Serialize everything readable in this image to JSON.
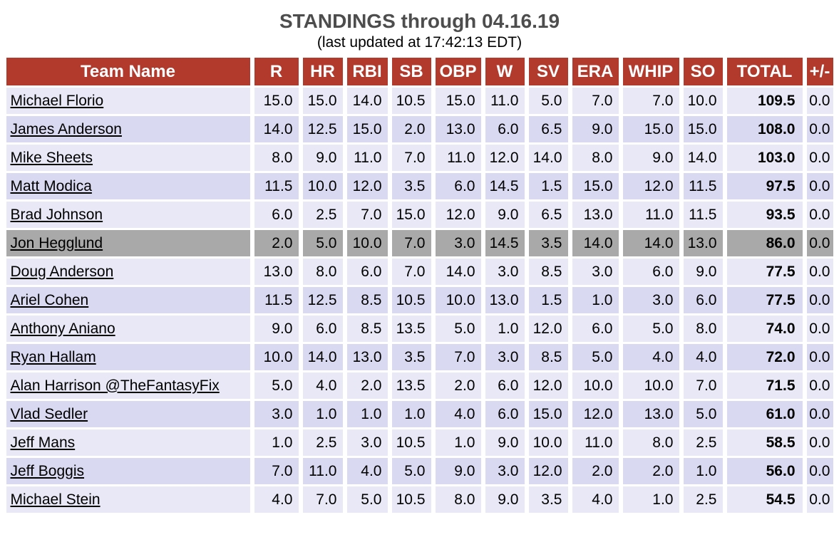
{
  "page": {
    "title": "STANDINGS through 04.16.19",
    "subtitle": "(last updated at 17:42:13 EDT)"
  },
  "colors": {
    "header_bg": "#b13a2d",
    "header_text": "#ffffff",
    "row_light_bg": "#e8e8f7",
    "row_dark_bg": "#d9d9f2",
    "highlight_row_bg": "#a9a9a9",
    "title_color": "#4d4d4d",
    "team_link_color": "#000000"
  },
  "table": {
    "columns": [
      "Team Name",
      "R",
      "HR",
      "RBI",
      "SB",
      "OBP",
      "W",
      "SV",
      "ERA",
      "WHIP",
      "SO",
      "TOTAL",
      "+/-"
    ],
    "rows": [
      {
        "team": "Michael Florio",
        "stats": [
          "15.0",
          "15.0",
          "14.0",
          "10.5",
          "15.0",
          "11.0",
          "5.0",
          "7.0",
          "7.0",
          "10.0"
        ],
        "total": "109.5",
        "plus_minus": "0.0",
        "highlighted": false
      },
      {
        "team": "James Anderson",
        "stats": [
          "14.0",
          "12.5",
          "15.0",
          "2.0",
          "13.0",
          "6.0",
          "6.5",
          "9.0",
          "15.0",
          "15.0"
        ],
        "total": "108.0",
        "plus_minus": "0.0",
        "highlighted": false
      },
      {
        "team": "Mike Sheets",
        "stats": [
          "8.0",
          "9.0",
          "11.0",
          "7.0",
          "11.0",
          "12.0",
          "14.0",
          "8.0",
          "9.0",
          "14.0"
        ],
        "total": "103.0",
        "plus_minus": "0.0",
        "highlighted": false
      },
      {
        "team": "Matt Modica",
        "stats": [
          "11.5",
          "10.0",
          "12.0",
          "3.5",
          "6.0",
          "14.5",
          "1.5",
          "15.0",
          "12.0",
          "11.5"
        ],
        "total": "97.5",
        "plus_minus": "0.0",
        "highlighted": false
      },
      {
        "team": "Brad Johnson",
        "stats": [
          "6.0",
          "2.5",
          "7.0",
          "15.0",
          "12.0",
          "9.0",
          "6.5",
          "13.0",
          "11.0",
          "11.5"
        ],
        "total": "93.5",
        "plus_minus": "0.0",
        "highlighted": false
      },
      {
        "team": "Jon Hegglund",
        "stats": [
          "2.0",
          "5.0",
          "10.0",
          "7.0",
          "3.0",
          "14.5",
          "3.5",
          "14.0",
          "14.0",
          "13.0"
        ],
        "total": "86.0",
        "plus_minus": "0.0",
        "highlighted": true
      },
      {
        "team": "Doug Anderson",
        "stats": [
          "13.0",
          "8.0",
          "6.0",
          "7.0",
          "14.0",
          "3.0",
          "8.5",
          "3.0",
          "6.0",
          "9.0"
        ],
        "total": "77.5",
        "plus_minus": "0.0",
        "highlighted": false
      },
      {
        "team": "Ariel Cohen",
        "stats": [
          "11.5",
          "12.5",
          "8.5",
          "10.5",
          "10.0",
          "13.0",
          "1.5",
          "1.0",
          "3.0",
          "6.0"
        ],
        "total": "77.5",
        "plus_minus": "0.0",
        "highlighted": false
      },
      {
        "team": "Anthony Aniano",
        "stats": [
          "9.0",
          "6.0",
          "8.5",
          "13.5",
          "5.0",
          "1.0",
          "12.0",
          "6.0",
          "5.0",
          "8.0"
        ],
        "total": "74.0",
        "plus_minus": "0.0",
        "highlighted": false
      },
      {
        "team": "Ryan Hallam",
        "stats": [
          "10.0",
          "14.0",
          "13.0",
          "3.5",
          "7.0",
          "3.0",
          "8.5",
          "5.0",
          "4.0",
          "4.0"
        ],
        "total": "72.0",
        "plus_minus": "0.0",
        "highlighted": false
      },
      {
        "team": "Alan Harrison @TheFantasyFix",
        "stats": [
          "5.0",
          "4.0",
          "2.0",
          "13.5",
          "2.0",
          "6.0",
          "12.0",
          "10.0",
          "10.0",
          "7.0"
        ],
        "total": "71.5",
        "plus_minus": "0.0",
        "highlighted": false
      },
      {
        "team": "Vlad Sedler",
        "stats": [
          "3.0",
          "1.0",
          "1.0",
          "1.0",
          "4.0",
          "6.0",
          "15.0",
          "12.0",
          "13.0",
          "5.0"
        ],
        "total": "61.0",
        "plus_minus": "0.0",
        "highlighted": false
      },
      {
        "team": "Jeff Mans",
        "stats": [
          "1.0",
          "2.5",
          "3.0",
          "10.5",
          "1.0",
          "9.0",
          "10.0",
          "11.0",
          "8.0",
          "2.5"
        ],
        "total": "58.5",
        "plus_minus": "0.0",
        "highlighted": false
      },
      {
        "team": "Jeff Boggis",
        "stats": [
          "7.0",
          "11.0",
          "4.0",
          "5.0",
          "9.0",
          "3.0",
          "12.0",
          "2.0",
          "2.0",
          "1.0"
        ],
        "total": "56.0",
        "plus_minus": "0.0",
        "highlighted": false
      },
      {
        "team": "Michael Stein",
        "stats": [
          "4.0",
          "7.0",
          "5.0",
          "10.5",
          "8.0",
          "9.0",
          "3.5",
          "4.0",
          "1.0",
          "2.5"
        ],
        "total": "54.5",
        "plus_minus": "0.0",
        "highlighted": false
      }
    ]
  }
}
